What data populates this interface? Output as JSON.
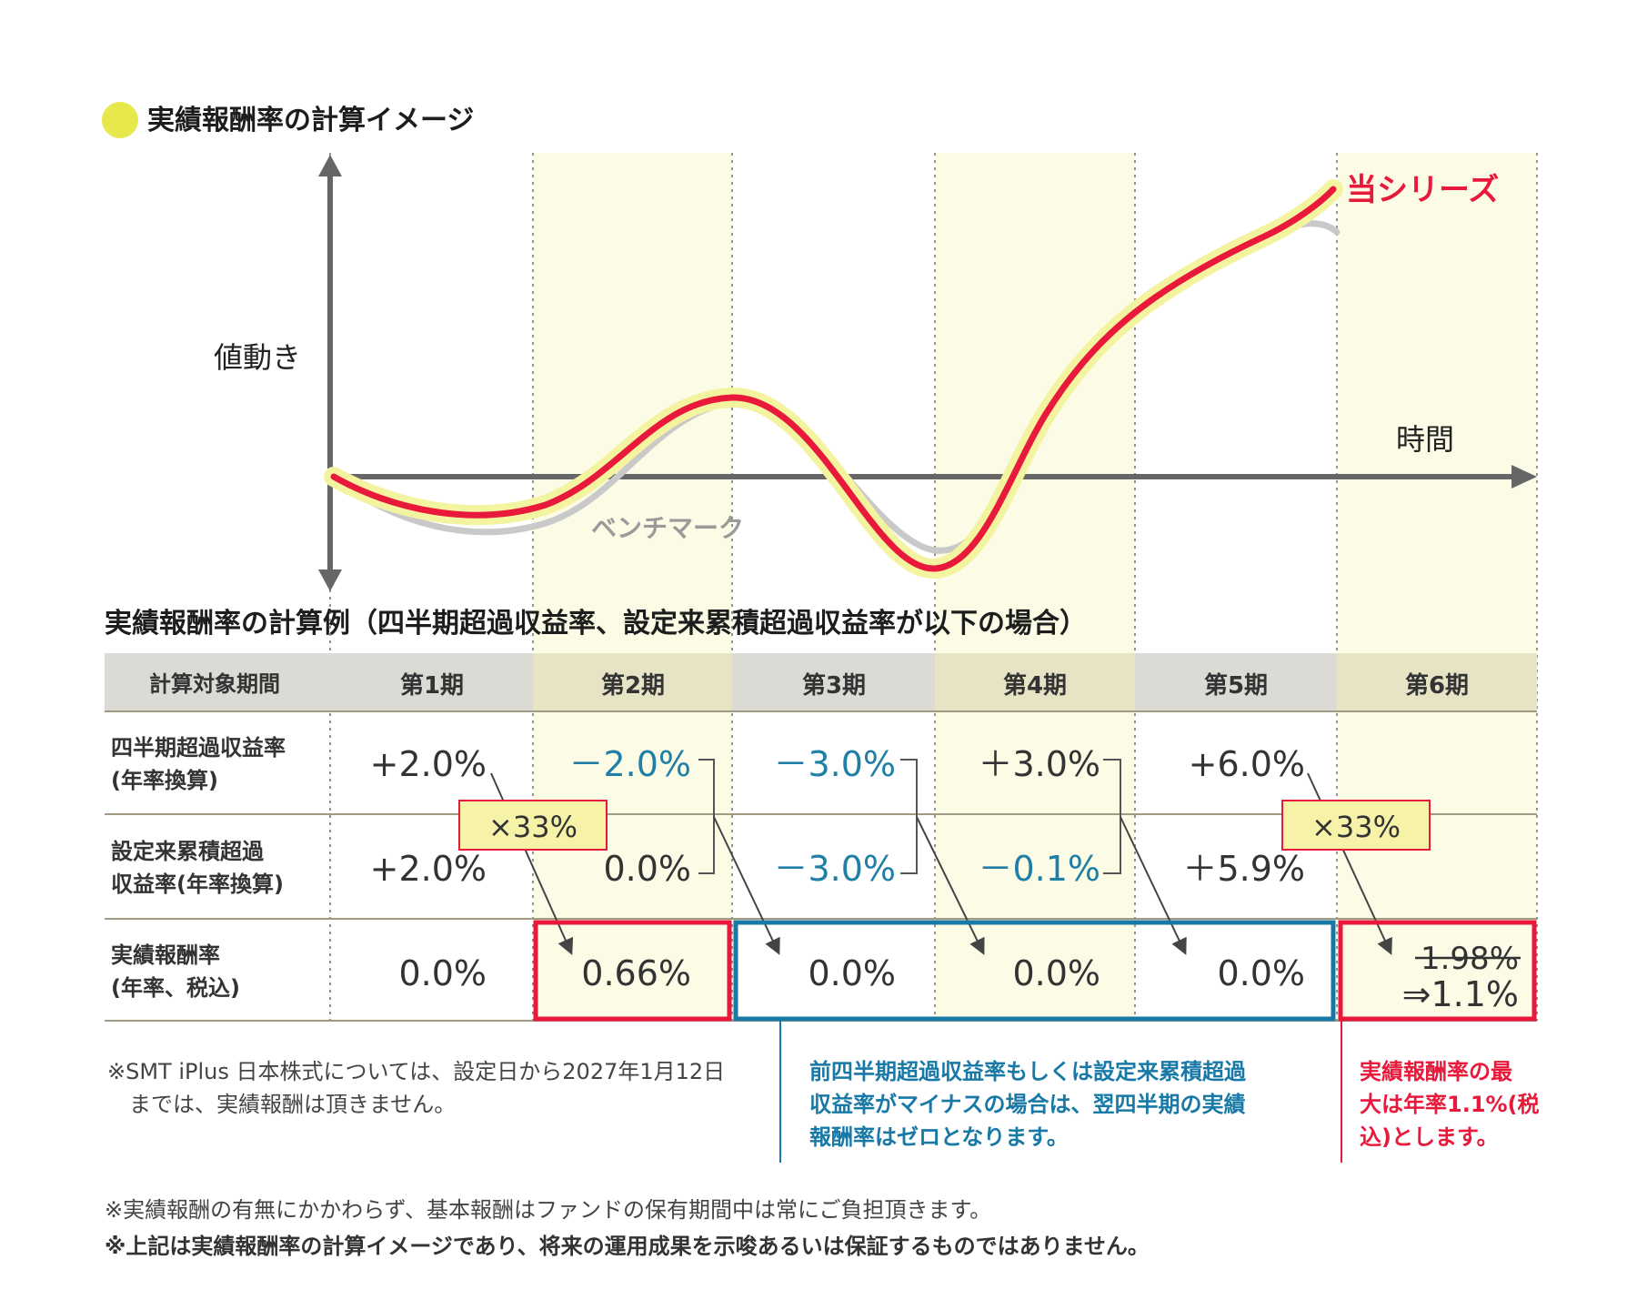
{
  "title": "実績報酬率の計算イメージ",
  "chart": {
    "y_label": "値動き",
    "x_label": "時間",
    "series_label": "当シリーズ",
    "benchmark_label": "ベンチマーク",
    "colors": {
      "series": "#e8193b",
      "benchmark": "#c9c9c9",
      "glow": "#f3f3a0",
      "axis": "#666666",
      "band": "#fbfbe6",
      "title_dot": "#e6e84c"
    }
  },
  "table": {
    "title": "実績報酬率の計算例（四半期超過収益率、設定来累積超過収益率が以下の場合）",
    "header_label": "計算対象期間",
    "periods": [
      "第1期",
      "第2期",
      "第3期",
      "第4期",
      "第5期",
      "第6期"
    ],
    "rows": [
      {
        "label1": "四半期超過収益率",
        "label2": "(年率換算)",
        "values": [
          "+2.0%",
          "－2.0%",
          "－3.0%",
          "＋3.0%",
          "+6.0%",
          ""
        ]
      },
      {
        "label1": "設定来累積超過",
        "label2": "収益率(年率換算)",
        "values": [
          "+2.0%",
          "0.0%",
          "－3.0%",
          "－0.1%",
          "＋5.9%",
          ""
        ]
      },
      {
        "label1": "実績報酬率",
        "label2": "(年率、税込)",
        "values": [
          "0.0%",
          "0.66%",
          "0.0%",
          "0.0%",
          "0.0%",
          ""
        ]
      }
    ],
    "row1_colors": [
      "#333333",
      "#1f7fa6",
      "#1f7fa6",
      "#333333",
      "#333333",
      "#333333"
    ],
    "row2_colors": [
      "#333333",
      "#333333",
      "#1f7fa6",
      "#1f7fa6",
      "#333333",
      "#333333"
    ],
    "multiplier": "×33%",
    "p6_struck": "1.98%",
    "p6_value": "⇒1.1%",
    "colors": {
      "header_bg": "#dcdad4",
      "header_hl": "#e6e4c4",
      "red": "#e8193b",
      "blue": "#1879a6",
      "badge_bg": "#f6f2a8"
    }
  },
  "notes": {
    "left": [
      "※SMT iPlus 日本株式については、設定日から2027年1月12日",
      "　までは、実績報酬は頂きません。"
    ],
    "blue": [
      "前四半期超過収益率もしくは設定来累積超過",
      "収益率がマイナスの場合は、翌四半期の実績",
      "報酬率はゼロとなります。"
    ],
    "red": [
      "実績報酬率の最",
      "大は年率1.1%(税",
      "込)とします。"
    ]
  },
  "footnotes": [
    "※実績報酬の有無にかかわらず、基本報酬はファンドの保有期間中は常にご負担頂きます。",
    "※上記は実績報酬率の計算イメージであり、将来の運用成果を示唆あるいは保証するものではありません。"
  ]
}
